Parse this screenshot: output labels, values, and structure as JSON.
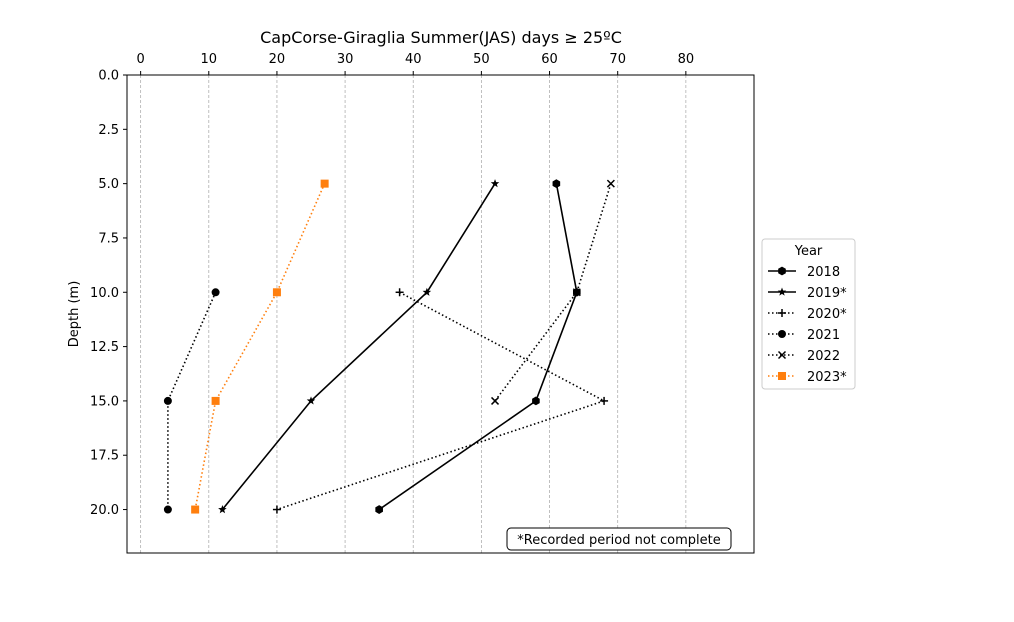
{
  "chart_data": {
    "type": "line",
    "title": "CapCorse-Giraglia Summer(JAS) days ≥ 25ºC",
    "xlabel": "",
    "ylabel": "Depth (m)",
    "xlim": [
      -2,
      90
    ],
    "ylim": [
      22,
      0
    ],
    "x_axis_position": "top",
    "y_inverted": true,
    "xticks": [
      0,
      10,
      20,
      30,
      40,
      50,
      60,
      70,
      80
    ],
    "yticks": [
      0.0,
      2.5,
      5.0,
      7.5,
      10.0,
      12.5,
      15.0,
      17.5,
      20.0
    ],
    "xtick_labels": [
      "0",
      "10",
      "20",
      "30",
      "40",
      "50",
      "60",
      "70",
      "80"
    ],
    "ytick_labels": [
      "0.0",
      "2.5",
      "5.0",
      "7.5",
      "10.0",
      "12.5",
      "15.0",
      "17.5",
      "20.0"
    ],
    "grid": "vertical dashed",
    "legend": {
      "title": "Year",
      "placement": "right, outside plot"
    },
    "annotation": "*Recorded period not complete",
    "series": [
      {
        "name": "2018",
        "color": "#000000",
        "linestyle": "solid",
        "marker": "hexagon",
        "points": [
          [
            61,
            5
          ],
          [
            64,
            10
          ],
          [
            58,
            15
          ],
          [
            35,
            20
          ]
        ]
      },
      {
        "name": "2019*",
        "color": "#000000",
        "linestyle": "solid",
        "marker": "star",
        "points": [
          [
            52,
            5
          ],
          [
            42,
            10
          ],
          [
            25,
            15
          ],
          [
            12,
            20
          ]
        ]
      },
      {
        "name": "2020*",
        "color": "#000000",
        "linestyle": "dotted",
        "marker": "plus",
        "points": [
          [
            38,
            10
          ],
          [
            68,
            15
          ],
          [
            20,
            20
          ]
        ]
      },
      {
        "name": "2021",
        "color": "#000000",
        "linestyle": "dotted",
        "marker": "circle",
        "points": [
          [
            11,
            10
          ],
          [
            4,
            15
          ],
          [
            4,
            20
          ]
        ]
      },
      {
        "name": "2022",
        "color": "#000000",
        "linestyle": "dotted",
        "marker": "x",
        "points": [
          [
            69,
            5
          ],
          [
            64,
            10
          ],
          [
            52,
            15
          ]
        ]
      },
      {
        "name": "2023*",
        "color": "#ff7f0e",
        "linestyle": "dotted",
        "marker": "square",
        "points": [
          [
            27,
            5
          ],
          [
            20,
            10
          ],
          [
            11,
            15
          ],
          [
            8,
            20
          ]
        ]
      }
    ]
  }
}
